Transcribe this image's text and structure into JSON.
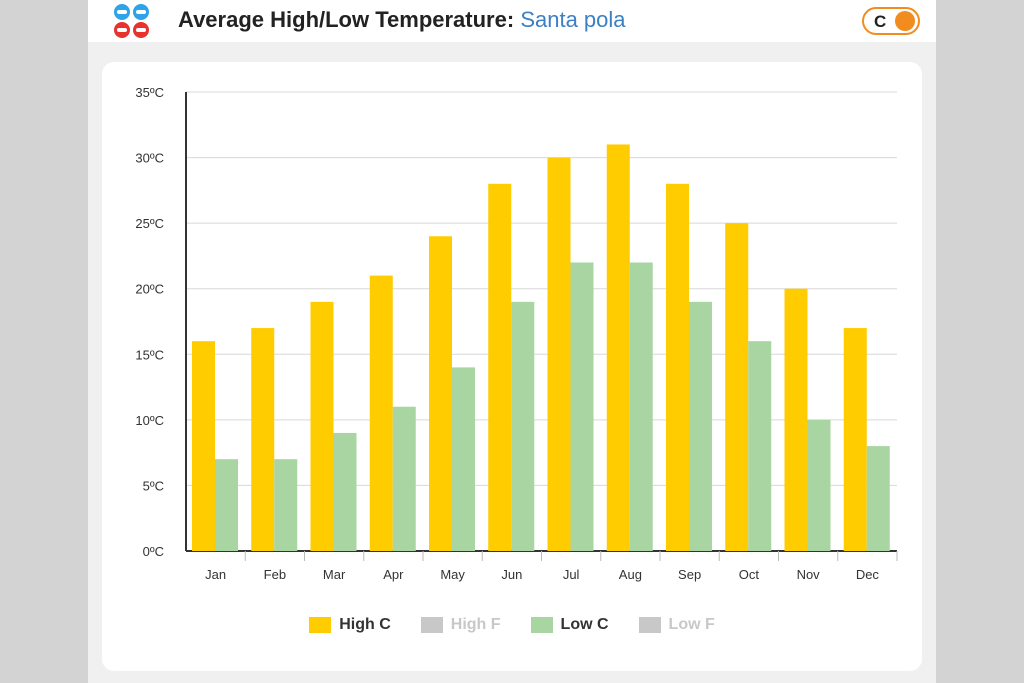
{
  "header": {
    "title": "Average High/Low Temperature:",
    "location": "Santa pola",
    "unit_toggle_label": "C"
  },
  "colors": {
    "high": "#ffcc00",
    "low": "#a8d5a2",
    "inactive": "#c8c8c8",
    "toggle": "#f28c1e"
  },
  "chart_data": {
    "type": "bar",
    "categories": [
      "Jan",
      "Feb",
      "Mar",
      "Apr",
      "May",
      "Jun",
      "Jul",
      "Aug",
      "Sep",
      "Oct",
      "Nov",
      "Dec"
    ],
    "series": [
      {
        "name": "High C",
        "values": [
          16,
          17,
          19,
          21,
          24,
          28,
          30,
          31,
          28,
          25,
          20,
          17
        ]
      },
      {
        "name": "Low C",
        "values": [
          7,
          7,
          9,
          11,
          14,
          19,
          22,
          22,
          19,
          16,
          10,
          8
        ]
      }
    ],
    "ylim": [
      0,
      35
    ],
    "yticks": [
      "0ºC",
      "5ºC",
      "10ºC",
      "15ºC",
      "20ºC",
      "25ºC",
      "30ºC",
      "35ºC"
    ],
    "grid": true,
    "legend": {
      "position": "bottom",
      "items": [
        {
          "label": "High C",
          "active": true
        },
        {
          "label": "High F",
          "active": false
        },
        {
          "label": "Low C",
          "active": true
        },
        {
          "label": "Low F",
          "active": false
        }
      ]
    }
  }
}
